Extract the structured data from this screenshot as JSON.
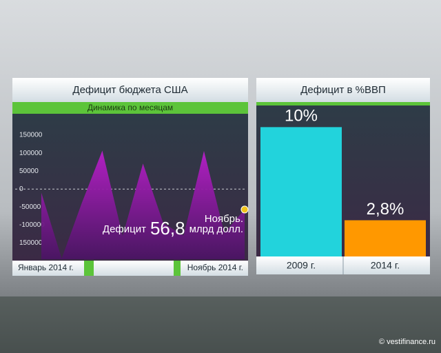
{
  "charts_title_note": null,
  "chart_data": [
    {
      "type": "area",
      "title": "Дефицит бюджета США",
      "subtitle": "Динамика по месяцам",
      "categories": [
        "Январь 2014 г.",
        null,
        null,
        null,
        null,
        null,
        null,
        null,
        null,
        null,
        "Ноябрь 2014 г."
      ],
      "values": [
        -10000,
        -193000,
        -37000,
        107000,
        -130000,
        71000,
        -95000,
        -129000,
        106000,
        -122000,
        -56800
      ],
      "color": "#a020b8",
      "ylim": [
        -195000,
        200000
      ],
      "yticks": [
        150000,
        100000,
        50000,
        0,
        -50000,
        -100000,
        {
          "value": -150000,
          "label": "150000"
        }
      ],
      "annotation": [
        "Ноябрь.",
        "Дефицит",
        "56,8",
        "млрд долл."
      ]
    },
    {
      "type": "bar",
      "title": "Дефицит в %ВВП",
      "categories": [
        "2009 г.",
        "2014 г."
      ],
      "values": [
        10,
        2.8
      ],
      "value_labels": [
        "10%",
        "2,8%"
      ],
      "colors": [
        "#22d3dc",
        "#ff9800"
      ],
      "ylim": [
        0,
        10.5
      ]
    }
  ],
  "watermark": "© vestifinance.ru"
}
